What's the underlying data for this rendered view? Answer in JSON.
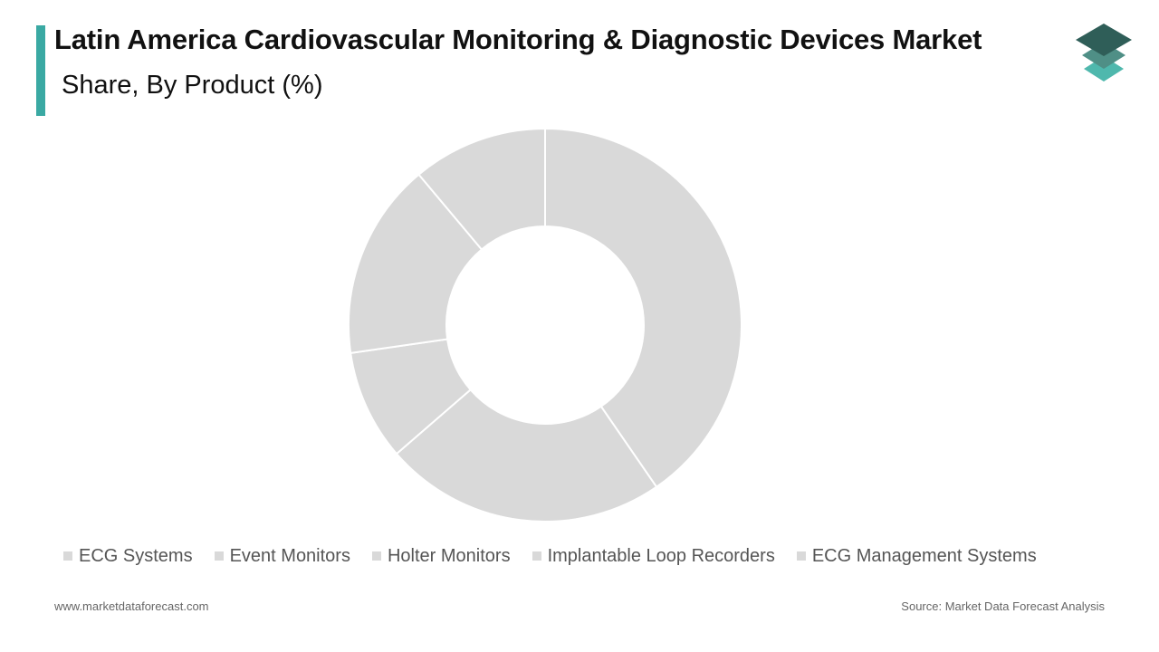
{
  "header": {
    "title": "Latin America Cardiovascular Monitoring & Diagnostic Devices Market",
    "subtitle": "Share, By Product (%)",
    "accent_color": "#3aa9a3"
  },
  "logo": {
    "icon": "stacked-layers-logo-icon",
    "colors": [
      "#2f5e58",
      "#4f8f86",
      "#4fb8ad"
    ]
  },
  "chart_data": {
    "type": "pie",
    "style": "donut",
    "categories": [
      "ECG Systems",
      "Event Monitors",
      "Holter Monitors",
      "Implantable Loop Recorders",
      "ECG Management Systems"
    ],
    "values": [
      40,
      23,
      9,
      16,
      11
    ],
    "slice_color": "#d9d9d9",
    "legend_placement": "bottom",
    "data_labels": false
  },
  "footer": {
    "website": "www.marketdataforecast.com",
    "source": "Source: Market Data Forecast Analysis"
  }
}
